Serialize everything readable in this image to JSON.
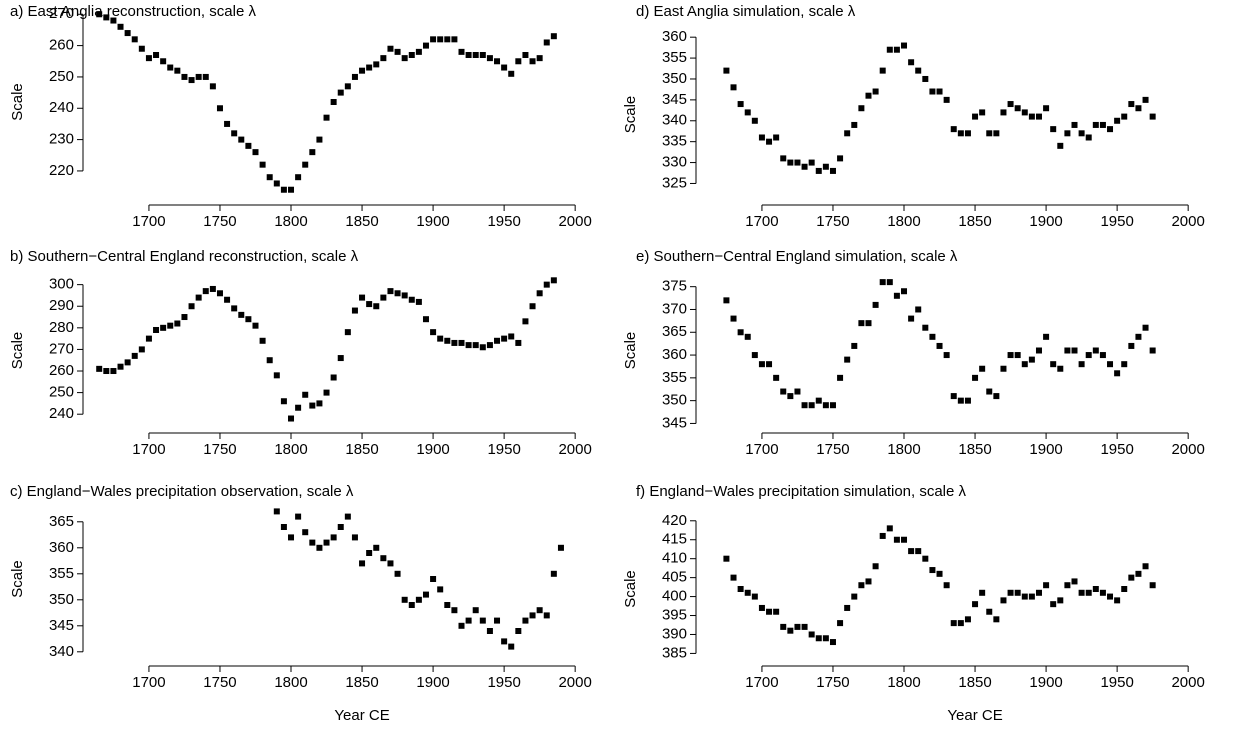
{
  "chart_data": [
    {
      "type": "scatter",
      "title": "a) East Anglia reconstruction, scale λ",
      "ylabel": "Scale",
      "color": "#000000",
      "xlim": [
        1655,
        2021
      ],
      "xticks": [
        1700,
        1750,
        1800,
        1850,
        1900,
        1950,
        2000
      ],
      "ylim": [
        212,
        272
      ],
      "yticks": [
        220,
        230,
        240,
        250,
        260,
        270
      ],
      "x": [
        1665,
        1670,
        1675,
        1680,
        1685,
        1690,
        1695,
        1700,
        1705,
        1710,
        1715,
        1720,
        1725,
        1730,
        1735,
        1740,
        1745,
        1750,
        1755,
        1760,
        1765,
        1770,
        1775,
        1780,
        1785,
        1790,
        1795,
        1800,
        1805,
        1810,
        1815,
        1820,
        1825,
        1830,
        1835,
        1840,
        1845,
        1850,
        1855,
        1860,
        1865,
        1870,
        1875,
        1880,
        1885,
        1890,
        1895,
        1900,
        1905,
        1910,
        1915,
        1920,
        1925,
        1930,
        1935,
        1940,
        1945,
        1950,
        1955,
        1960,
        1965,
        1970,
        1975,
        1980,
        1985
      ],
      "values": [
        270,
        269,
        268,
        266,
        264,
        262,
        259,
        256,
        257,
        255,
        253,
        252,
        250,
        249,
        250,
        250,
        247,
        240,
        235,
        232,
        230,
        228,
        226,
        222,
        218,
        216,
        214,
        214,
        218,
        222,
        226,
        230,
        237,
        242,
        245,
        247,
        250,
        252,
        253,
        254,
        256,
        259,
        258,
        256,
        257,
        258,
        260,
        262,
        262,
        262,
        262,
        258,
        257,
        257,
        257,
        256,
        255,
        253,
        251,
        255,
        257,
        255,
        256,
        261,
        263
      ]
    },
    {
      "type": "scatter",
      "title": "b) Southern−Central England reconstruction, scale λ",
      "ylabel": "Scale",
      "color": "#000000",
      "xlim": [
        1655,
        2021
      ],
      "xticks": [
        1700,
        1750,
        1800,
        1850,
        1900,
        1950,
        2000
      ],
      "ylim": [
        235,
        304
      ],
      "yticks": [
        240,
        250,
        260,
        270,
        280,
        290,
        300
      ],
      "x": [
        1665,
        1670,
        1675,
        1680,
        1685,
        1690,
        1695,
        1700,
        1705,
        1710,
        1715,
        1720,
        1725,
        1730,
        1735,
        1740,
        1745,
        1750,
        1755,
        1760,
        1765,
        1770,
        1775,
        1780,
        1785,
        1790,
        1795,
        1800,
        1805,
        1810,
        1815,
        1820,
        1825,
        1830,
        1835,
        1840,
        1845,
        1850,
        1855,
        1860,
        1865,
        1870,
        1875,
        1880,
        1885,
        1890,
        1895,
        1900,
        1905,
        1910,
        1915,
        1920,
        1925,
        1930,
        1935,
        1940,
        1945,
        1950,
        1955,
        1960,
        1965,
        1970,
        1975,
        1980,
        1985
      ],
      "values": [
        261,
        260,
        260,
        262,
        264,
        267,
        270,
        275,
        279,
        280,
        281,
        282,
        285,
        290,
        294,
        297,
        298,
        296,
        293,
        289,
        286,
        284,
        281,
        274,
        265,
        258,
        246,
        238,
        243,
        249,
        244,
        245,
        250,
        257,
        266,
        278,
        288,
        294,
        291,
        290,
        294,
        297,
        296,
        295,
        293,
        292,
        284,
        278,
        275,
        274,
        273,
        273,
        272,
        272,
        271,
        272,
        274,
        275,
        276,
        273,
        283,
        290,
        296,
        300,
        302
      ]
    },
    {
      "type": "scatter",
      "title": "c) England−Wales precipitation observation, scale λ",
      "ylabel": "Scale",
      "xlabel": "Year CE",
      "color": "#000000",
      "xlim": [
        1655,
        2021
      ],
      "xticks": [
        1700,
        1750,
        1800,
        1850,
        1900,
        1950,
        2000
      ],
      "ylim": [
        339,
        369
      ],
      "yticks": [
        340,
        345,
        350,
        355,
        360,
        365
      ],
      "x": [
        1790,
        1795,
        1800,
        1805,
        1810,
        1815,
        1820,
        1825,
        1830,
        1835,
        1840,
        1845,
        1850,
        1855,
        1860,
        1865,
        1870,
        1875,
        1880,
        1885,
        1890,
        1895,
        1900,
        1905,
        1910,
        1915,
        1920,
        1925,
        1930,
        1935,
        1940,
        1945,
        1950,
        1955,
        1960,
        1965,
        1970,
        1975,
        1980,
        1985,
        1990
      ],
      "values": [
        367,
        364,
        362,
        366,
        363,
        361,
        360,
        361,
        362,
        364,
        366,
        362,
        357,
        359,
        360,
        358,
        357,
        355,
        350,
        349,
        350,
        351,
        354,
        352,
        349,
        348,
        345,
        346,
        348,
        346,
        344,
        346,
        342,
        341,
        344,
        346,
        347,
        348,
        347,
        355,
        360
      ]
    },
    {
      "type": "scatter",
      "title": "d) East Anglia simulation, scale λ",
      "ylabel": "Scale",
      "color": "#000000",
      "xlim": [
        1655,
        2021
      ],
      "xticks": [
        1700,
        1750,
        1800,
        1850,
        1900,
        1950,
        2000
      ],
      "ylim": [
        322,
        361
      ],
      "yticks": [
        325,
        330,
        335,
        340,
        345,
        350,
        355,
        360
      ],
      "x": [
        1675,
        1680,
        1685,
        1690,
        1695,
        1700,
        1705,
        1710,
        1715,
        1720,
        1725,
        1730,
        1735,
        1740,
        1745,
        1750,
        1755,
        1760,
        1765,
        1770,
        1775,
        1780,
        1785,
        1790,
        1795,
        1800,
        1805,
        1810,
        1815,
        1820,
        1825,
        1830,
        1835,
        1840,
        1845,
        1850,
        1855,
        1860,
        1865,
        1870,
        1875,
        1880,
        1885,
        1890,
        1895,
        1900,
        1905,
        1910,
        1915,
        1920,
        1925,
        1930,
        1935,
        1940,
        1945,
        1950,
        1955,
        1960,
        1965,
        1970,
        1975
      ],
      "values": [
        352,
        348,
        344,
        342,
        340,
        336,
        335,
        336,
        331,
        330,
        330,
        329,
        330,
        328,
        329,
        328,
        331,
        337,
        339,
        343,
        346,
        347,
        352,
        357,
        357,
        358,
        354,
        352,
        350,
        347,
        347,
        345,
        338,
        337,
        337,
        341,
        342,
        337,
        337,
        342,
        344,
        343,
        342,
        341,
        341,
        343,
        338,
        334,
        337,
        339,
        337,
        336,
        339,
        339,
        338,
        340,
        341,
        344,
        343,
        345,
        341
      ]
    },
    {
      "type": "scatter",
      "title": "e) Southern−Central England simulation, scale λ",
      "ylabel": "Scale",
      "color": "#000000",
      "xlim": [
        1655,
        2021
      ],
      "xticks": [
        1700,
        1750,
        1800,
        1850,
        1900,
        1950,
        2000
      ],
      "ylim": [
        344,
        378
      ],
      "yticks": [
        345,
        350,
        355,
        360,
        365,
        370,
        375
      ],
      "x": [
        1675,
        1680,
        1685,
        1690,
        1695,
        1700,
        1705,
        1710,
        1715,
        1720,
        1725,
        1730,
        1735,
        1740,
        1745,
        1750,
        1755,
        1760,
        1765,
        1770,
        1775,
        1780,
        1785,
        1790,
        1795,
        1800,
        1805,
        1810,
        1815,
        1820,
        1825,
        1830,
        1835,
        1840,
        1845,
        1850,
        1855,
        1860,
        1865,
        1870,
        1875,
        1880,
        1885,
        1890,
        1895,
        1900,
        1905,
        1910,
        1915,
        1920,
        1925,
        1930,
        1935,
        1940,
        1945,
        1950,
        1955,
        1960,
        1965,
        1970,
        1975
      ],
      "values": [
        372,
        368,
        365,
        364,
        360,
        358,
        358,
        355,
        352,
        351,
        352,
        349,
        349,
        350,
        349,
        349,
        355,
        359,
        362,
        367,
        367,
        371,
        376,
        376,
        373,
        374,
        368,
        370,
        366,
        364,
        362,
        360,
        351,
        350,
        350,
        355,
        357,
        352,
        351,
        357,
        360,
        360,
        358,
        359,
        361,
        364,
        358,
        357,
        361,
        361,
        358,
        360,
        361,
        360,
        358,
        356,
        358,
        362,
        364,
        366,
        361
      ]
    },
    {
      "type": "scatter",
      "title": "f) England−Wales precipitation simulation, scale λ",
      "ylabel": "Scale",
      "xlabel": "Year CE",
      "color": "#000000",
      "xlim": [
        1655,
        2021
      ],
      "xticks": [
        1700,
        1750,
        1800,
        1850,
        1900,
        1950,
        2000
      ],
      "ylim": [
        383,
        421
      ],
      "yticks": [
        385,
        390,
        395,
        400,
        405,
        410,
        415,
        420
      ],
      "x": [
        1675,
        1680,
        1685,
        1690,
        1695,
        1700,
        1705,
        1710,
        1715,
        1720,
        1725,
        1730,
        1735,
        1740,
        1745,
        1750,
        1755,
        1760,
        1765,
        1770,
        1775,
        1780,
        1785,
        1790,
        1795,
        1800,
        1805,
        1810,
        1815,
        1820,
        1825,
        1830,
        1835,
        1840,
        1845,
        1850,
        1855,
        1860,
        1865,
        1870,
        1875,
        1880,
        1885,
        1890,
        1895,
        1900,
        1905,
        1910,
        1915,
        1920,
        1925,
        1930,
        1935,
        1940,
        1945,
        1950,
        1955,
        1960,
        1965,
        1970,
        1975
      ],
      "values": [
        410,
        405,
        402,
        401,
        400,
        397,
        396,
        396,
        392,
        391,
        392,
        392,
        390,
        389,
        389,
        388,
        393,
        397,
        400,
        403,
        404,
        408,
        416,
        418,
        415,
        415,
        412,
        412,
        410,
        407,
        406,
        403,
        393,
        393,
        394,
        398,
        401,
        396,
        394,
        399,
        401,
        401,
        400,
        400,
        401,
        403,
        398,
        399,
        403,
        404,
        401,
        401,
        402,
        401,
        400,
        399,
        402,
        405,
        406,
        408,
        403
      ]
    }
  ]
}
